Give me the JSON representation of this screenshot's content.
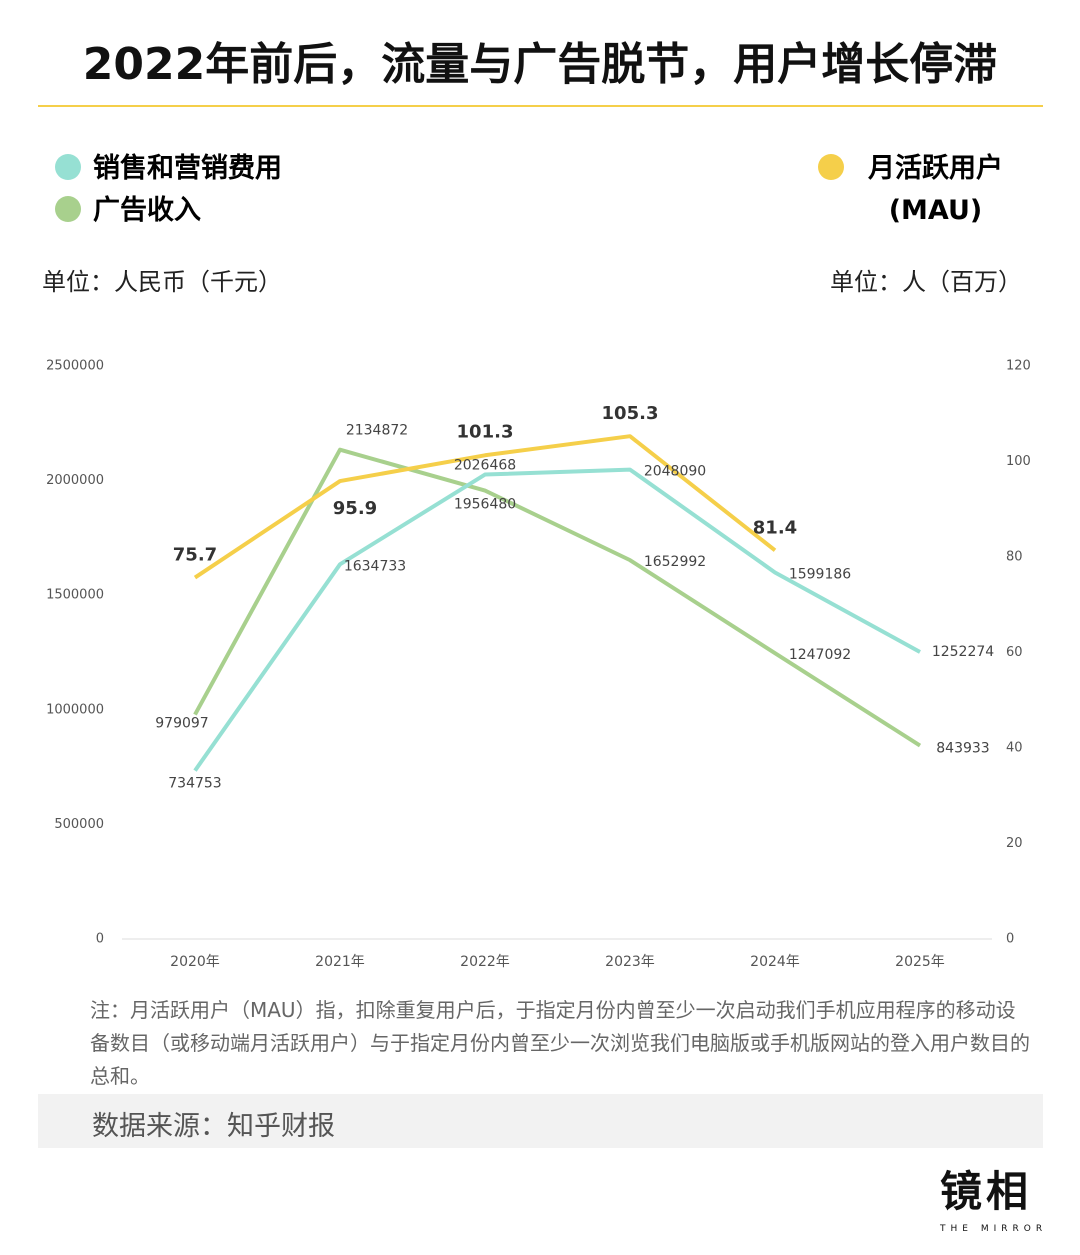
{
  "chart_data": {
    "type": "line",
    "title": "2022年前后，流量与广告脱节，用户增长停滞",
    "y_unit": "单位：人民币（千元）",
    "y2_unit": "单位：人（百万）",
    "categories": [
      "2020年",
      "2021年",
      "2022年",
      "2023年",
      "2024年",
      "2025年"
    ],
    "series": [
      {
        "name": "销售和营销费用",
        "color": "#96e0d3",
        "values": [
          734753,
          1634733,
          2026468,
          2048090,
          1599186,
          1252274
        ]
      },
      {
        "name": "广告收入",
        "color": "#a8d08d",
        "values": [
          979097,
          2134872,
          1956480,
          1652992,
          1247092,
          843933
        ]
      },
      {
        "name": "月活跃用户\n(MAU)",
        "color": "#f5cf4a",
        "axis": "y2",
        "values": [
          75.7,
          95.9,
          101.3,
          105.3,
          81.4,
          null
        ]
      }
    ],
    "ylim": [
      0,
      2500000
    ],
    "yticks": [
      0,
      500000,
      1000000,
      1500000,
      2000000,
      2500000
    ],
    "y2lim": [
      0,
      120
    ],
    "y2ticks": [
      0,
      20,
      40,
      60,
      80,
      100,
      120
    ],
    "note": "注：月活跃用户（MAU）指，扣除重复用户后，于指定月份内曾至少一次启动我们手机应用程序的移动设备数目（或移动端月活跃用户）与于指定月份内曾至少一次浏览我们电脑版或手机版网站的登入用户数目的总和。",
    "source": "数据来源：知乎财报",
    "logo": {
      "main": "镜相",
      "sub": "THE MIRROR"
    }
  }
}
